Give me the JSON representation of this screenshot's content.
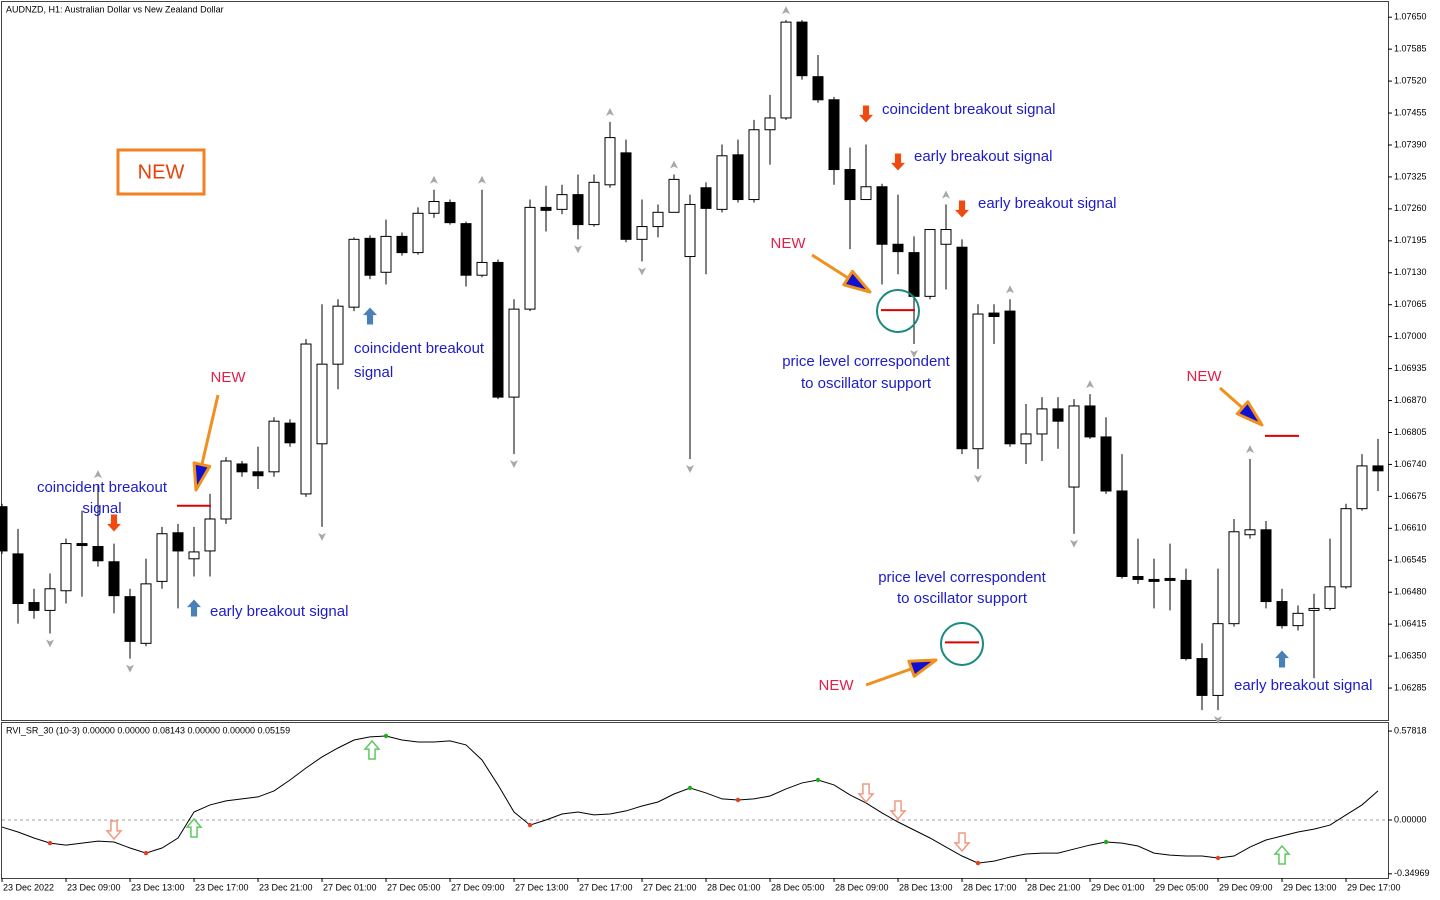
{
  "chart_data": [
    {
      "type": "candlestick",
      "title": "AUDNZD, H1:  Australian Dollar vs New Zealand Dollar",
      "categories": [
        "23 Dec 2022",
        null,
        null,
        null,
        "23 Dec 09:00",
        null,
        null,
        null,
        "23 Dec 13:00",
        null,
        null,
        null,
        "23 Dec 17:00",
        null,
        null,
        null,
        "23 Dec 21:00",
        null,
        null,
        null,
        "27 Dec 01:00",
        null,
        null,
        null,
        "27 Dec 05:00",
        null,
        null,
        null,
        "27 Dec 09:00",
        null,
        null,
        null,
        "27 Dec 13:00",
        null,
        null,
        null,
        "27 Dec 17:00",
        null,
        null,
        null,
        "27 Dec 21:00",
        null,
        null,
        null,
        "28 Dec 01:00",
        null,
        null,
        null,
        "28 Dec 05:00",
        null,
        null,
        null,
        "28 Dec 09:00",
        null,
        null,
        null,
        "28 Dec 13:00",
        null,
        null,
        null,
        "28 Dec 17:00",
        null,
        null,
        null,
        "28 Dec 21:00",
        null,
        null,
        null,
        "29 Dec 01:00",
        null,
        null,
        null,
        "29 Dec 05:00",
        null,
        null,
        null,
        "29 Dec 09:00",
        null,
        null,
        null,
        "29 Dec 13:00",
        null,
        null,
        null,
        "29 Dec 17:00",
        null,
        null
      ],
      "open": [
        1.06654,
        1.06558,
        1.06459,
        1.06443,
        1.06483,
        1.06579,
        1.06573,
        1.06542,
        1.06471,
        1.06376,
        1.06502,
        1.06601,
        1.06548,
        1.06564,
        1.06629,
        1.06741,
        1.06725,
        1.06725,
        1.06824,
        1.0668,
        1.06782,
        1.06944,
        1.0706,
        1.072,
        1.07131,
        1.07204,
        1.07171,
        1.07251,
        1.07273,
        1.0723,
        1.07125,
        1.07151,
        1.06877,
        1.07056,
        1.07263,
        1.07259,
        1.07289,
        1.07228,
        1.07309,
        1.07374,
        1.07198,
        1.07224,
        1.07253,
        1.07163,
        1.07303,
        1.07259,
        1.0737,
        1.07279,
        1.07421,
        1.07445,
        1.0764,
        1.07529,
        1.07482,
        1.0734,
        1.07279,
        1.07305,
        1.07188,
        1.07171,
        1.07082,
        1.07188,
        1.07182,
        1.06772,
        1.07048,
        1.07052,
        1.06782,
        1.06802,
        1.06853,
        1.06694,
        1.06859,
        1.06796,
        1.06686,
        1.06512,
        1.06506,
        1.06508,
        1.06504,
        1.06345,
        1.0627,
        1.06416,
        1.06597,
        1.06607,
        1.06461,
        1.06412,
        1.06443,
        1.06447,
        1.06491,
        1.0665,
        1.06737
      ],
      "high": [
        1.0666,
        1.06609,
        1.06487,
        1.06518,
        1.06589,
        1.06646,
        1.067,
        1.06579,
        1.06487,
        1.06548,
        1.06613,
        1.06619,
        1.06613,
        1.0668,
        1.06755,
        1.06747,
        1.06776,
        1.06836,
        1.06832,
        1.06995,
        1.07066,
        1.07076,
        1.07202,
        1.07206,
        1.07238,
        1.07212,
        1.07263,
        1.07299,
        1.07279,
        1.07234,
        1.07299,
        1.07157,
        1.07076,
        1.07279,
        1.07307,
        1.07309,
        1.0733,
        1.0733,
        1.07437,
        1.07401,
        1.07279,
        1.07269,
        1.0733,
        1.07289,
        1.07314,
        1.07391,
        1.07401,
        1.07441,
        1.07492,
        1.07644,
        1.07644,
        1.07573,
        1.07488,
        1.07385,
        1.07391,
        1.07311,
        1.07289,
        1.07204,
        1.07218,
        1.07269,
        1.07198,
        1.07066,
        1.07066,
        1.07076,
        1.06863,
        1.06877,
        1.06877,
        1.06873,
        1.06883,
        1.06836,
        1.06761,
        1.06589,
        1.06548,
        1.06579,
        1.06528,
        1.06376,
        1.06528,
        1.06629,
        1.06751,
        1.06625,
        1.06487,
        1.06453,
        1.06477,
        1.06589,
        1.0666,
        1.06761,
        1.06792
      ],
      "low": [
        1.06558,
        1.06416,
        1.06426,
        1.06396,
        1.06457,
        1.06471,
        1.06532,
        1.06437,
        1.06345,
        1.0637,
        1.06487,
        1.06447,
        1.06512,
        1.06512,
        1.06619,
        1.06715,
        1.0669,
        1.06715,
        1.06776,
        1.06674,
        1.06613,
        1.06893,
        1.07052,
        1.07117,
        1.07106,
        1.07165,
        1.07167,
        1.07242,
        1.07228,
        1.07102,
        1.07121,
        1.06873,
        1.06761,
        1.07052,
        1.07214,
        1.07249,
        1.07198,
        1.07224,
        1.07303,
        1.07192,
        1.07153,
        1.07202,
        1.07253,
        1.06751,
        1.07127,
        1.07253,
        1.07273,
        1.07273,
        1.0735,
        1.07441,
        1.07523,
        1.07476,
        1.07309,
        1.07178,
        1.07279,
        1.07106,
        1.07127,
        1.06985,
        1.07076,
        1.07096,
        1.06761,
        1.06731,
        1.06985,
        1.06776,
        1.06741,
        1.06747,
        1.06772,
        1.06599,
        1.06792,
        1.0668,
        1.06508,
        1.06497,
        1.06447,
        1.06443,
        1.06341,
        1.0624,
        1.0624,
        1.0641,
        1.06589,
        1.06447,
        1.06406,
        1.06402,
        1.06305,
        1.06443,
        1.06487,
        1.06646,
        1.06686
      ],
      "close": [
        1.06564,
        1.06457,
        1.06443,
        1.06487,
        1.06579,
        1.06575,
        1.06544,
        1.06473,
        1.0638,
        1.06497,
        1.06599,
        1.06564,
        1.06562,
        1.06629,
        1.06747,
        1.06725,
        1.06717,
        1.06828,
        1.06784,
        1.06985,
        1.06944,
        1.07062,
        1.07198,
        1.07125,
        1.07204,
        1.07171,
        1.07251,
        1.07275,
        1.07232,
        1.07125,
        1.07151,
        1.06877,
        1.07056,
        1.07263,
        1.07257,
        1.07289,
        1.07228,
        1.07314,
        1.07405,
        1.07198,
        1.07224,
        1.07253,
        1.0732,
        1.07269,
        1.07261,
        1.07368,
        1.07279,
        1.07421,
        1.07445,
        1.0764,
        1.07531,
        1.07482,
        1.0734,
        1.07279,
        1.07305,
        1.07188,
        1.07173,
        1.07082,
        1.07218,
        1.07218,
        1.06772,
        1.07046,
        1.07041,
        1.06782,
        1.06802,
        1.06853,
        1.06828,
        1.06859,
        1.06796,
        1.06686,
        1.06512,
        1.06506,
        1.06502,
        1.06504,
        1.06345,
        1.0627,
        1.06416,
        1.06603,
        1.06607,
        1.06461,
        1.06412,
        1.06437,
        1.06447,
        1.06491,
        1.0665,
        1.06737,
        1.06727
      ],
      "up_color": "#ffffff",
      "down_color": "#000000",
      "up_fractals": [
        6,
        27,
        30,
        38,
        42,
        49,
        59,
        63,
        68,
        78
      ],
      "down_fractals": [
        3,
        8,
        20,
        32,
        36,
        40,
        43,
        57,
        61,
        67,
        76
      ],
      "fractal_color": "#a8a8a8",
      "levels": [
        1.06656,
        1.07054,
        1.06378,
        1.06798
      ],
      "level_color": "#e00000",
      "ylim": [
        1.0622,
        1.07685
      ],
      "yticks": [
        {
          "value": 1.0765,
          "label": "1.07650"
        },
        1.07585,
        {
          "value": 1.0752,
          "label": "1.07520"
        },
        1.07455,
        {
          "value": 1.0739,
          "label": "1.07390"
        },
        1.07325,
        {
          "value": 1.0726,
          "label": "1.07260"
        },
        1.07195,
        {
          "value": 1.0713,
          "label": "1.07130"
        },
        1.07065,
        {
          "value": 1.07,
          "label": "1.07000"
        },
        1.06935,
        {
          "value": 1.0687,
          "label": "1.06870"
        },
        1.06805,
        {
          "value": 1.0674,
          "label": "1.06740"
        },
        1.06675,
        {
          "value": 1.0661,
          "label": "1.06610"
        },
        1.06545,
        {
          "value": 1.0648,
          "label": "1.06480"
        },
        1.06415,
        {
          "value": 1.0635,
          "label": "1.06350"
        },
        1.06285
      ],
      "annotations": [
        {
          "lines": [
            "coincident breakout",
            "signal"
          ]
        },
        {
          "lines": [
            "early breakout signal"
          ]
        },
        {
          "lines": [
            "coincident breakout",
            "signal"
          ]
        },
        {
          "lines": [
            "coincident breakout signal"
          ]
        },
        {
          "lines": [
            "early breakout signal"
          ]
        },
        {
          "lines": [
            "early breakout signal"
          ]
        },
        {
          "lines": [
            "price level correspondent",
            "to oscillator support"
          ]
        },
        {
          "lines": [
            "price level correspondent",
            "to oscillator support"
          ]
        },
        {
          "lines": [
            "early breakout signal"
          ]
        }
      ],
      "annotation_color": "#1c1cc8",
      "new_labels": [
        "NEW",
        "NEW",
        "NEW",
        "NEW"
      ],
      "new_color": "#e0204a",
      "badge": "NEW"
    },
    {
      "type": "line",
      "title": "RVI_SR_30 (10-3) 0.00000 0.00000 0.08143 0.00000 0.00000 0.05159",
      "series": [
        {
          "color": "#000000",
          "values": [
            -0.046,
            -0.078,
            -0.117,
            -0.15,
            -0.163,
            -0.15,
            -0.137,
            -0.143,
            -0.182,
            -0.215,
            -0.182,
            -0.117,
            0.052,
            0.098,
            0.124,
            0.137,
            0.15,
            0.189,
            0.26,
            0.338,
            0.41,
            0.468,
            0.52,
            0.54,
            0.546,
            0.52,
            0.507,
            0.507,
            0.514,
            0.488,
            0.39,
            0.228,
            0.052,
            -0.033,
            0,
            0.039,
            0.052,
            0.033,
            0.039,
            0.059,
            0.091,
            0.117,
            0.169,
            0.208,
            0.176,
            0.137,
            0.13,
            0.137,
            0.156,
            0.202,
            0.241,
            0.26,
            0.228,
            0.163,
            0.111,
            0.046,
            -0.013,
            -0.065,
            -0.117,
            -0.176,
            -0.234,
            -0.28,
            -0.267,
            -0.241,
            -0.221,
            -0.215,
            -0.215,
            -0.189,
            -0.163,
            -0.143,
            -0.15,
            -0.169,
            -0.215,
            -0.228,
            -0.234,
            -0.234,
            -0.247,
            -0.234,
            -0.176,
            -0.13,
            -0.104,
            -0.078,
            -0.059,
            -0.033,
            0.033,
            0.098,
            0.189
          ]
        }
      ],
      "low_markers": {
        "color": "#e04020",
        "indices": [
          3,
          9,
          33,
          46,
          61,
          76
        ]
      },
      "high_markers": {
        "color": "#22aa22",
        "indices": [
          24,
          43,
          51,
          69
        ]
      },
      "level": 0,
      "ylim": [
        -0.377,
        0.637
      ],
      "yticks": [
        0.57818,
        {
          "value": 0,
          "label": "0.00000"
        },
        -0.34969
      ]
    }
  ]
}
